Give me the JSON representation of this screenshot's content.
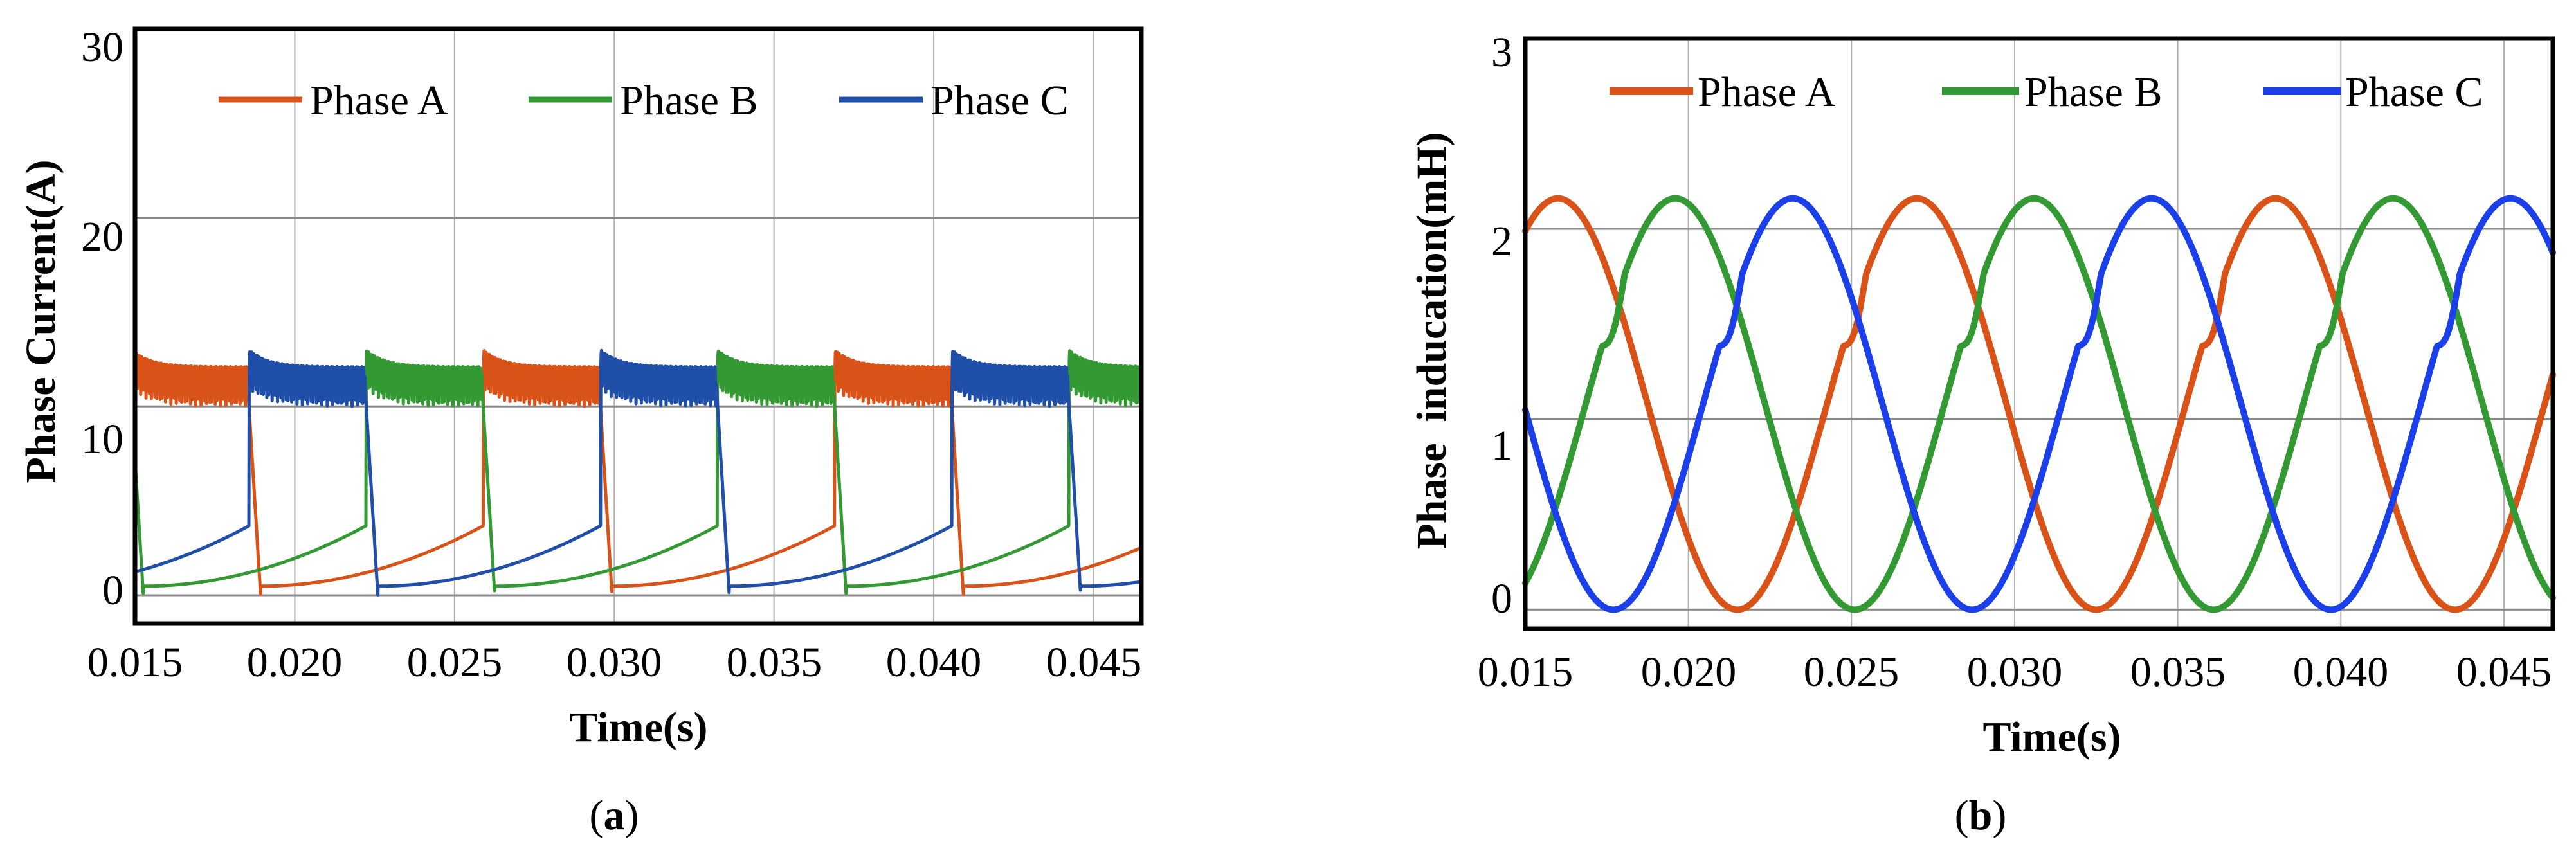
{
  "chart_data": [
    {
      "panel_label": "a",
      "type": "line",
      "title": "",
      "xlabel": "Time(s)",
      "ylabel": "Phase Current(A)",
      "xlim": [
        0.015,
        0.0465
      ],
      "ylim": [
        -1.5,
        30
      ],
      "xticks": [
        0.015,
        0.02,
        0.025,
        0.03,
        0.035,
        0.04,
        0.045
      ],
      "xtick_labels": [
        "0.015",
        "0.020",
        "0.025",
        "0.030",
        "0.035",
        "0.040",
        "0.045"
      ],
      "yticks": [
        0,
        10,
        20,
        30
      ],
      "ytick_labels": [
        "0",
        "10",
        "20",
        "30"
      ],
      "grid": true,
      "legend_position": "top",
      "series": [
        {
          "name": "Phase A",
          "color": "#D95319",
          "conduction_start": 0.0149,
          "phase_offset": 0.0
        },
        {
          "name": "Phase B",
          "color": "#339933",
          "conduction_start": 0.0149,
          "phase_offset": -0.00367
        },
        {
          "name": "Phase C",
          "color": "#1F4FA8",
          "conduction_start": 0.0149,
          "phase_offset": -0.00733
        }
      ],
      "waveform": {
        "period": 0.011,
        "conduction_duration": 0.00363,
        "on_level": 10,
        "on_peak": 13,
        "ripple": 2.1,
        "fall_time": 0.0004,
        "decay_floor": 1.6,
        "decay_ceiling": 3.2
      }
    },
    {
      "panel_label": "b",
      "type": "line",
      "title": "",
      "xlabel": "Time(s)",
      "ylabel": "Phase  inducation(mH)",
      "xlim": [
        0.015,
        0.0465
      ],
      "ylim": [
        -0.1,
        3
      ],
      "xticks": [
        0.015,
        0.02,
        0.025,
        0.03,
        0.035,
        0.04,
        0.045
      ],
      "xtick_labels": [
        "0.015",
        "0.020",
        "0.025",
        "0.030",
        "0.035",
        "0.040",
        "0.045"
      ],
      "yticks": [
        0,
        1,
        2,
        3
      ],
      "ytick_labels": [
        "0",
        "1",
        "2",
        "3"
      ],
      "grid": true,
      "legend_position": "top",
      "series": [
        {
          "name": "Phase A",
          "color": "#D95319",
          "peak_time": 0.016,
          "notch_time": 0.0251
        },
        {
          "name": "Phase B",
          "color": "#339933",
          "peak_time": 0.0196,
          "notch_time": 0.0287
        },
        {
          "name": "Phase C",
          "color": "#1B3FE8",
          "peak_time": 0.0232,
          "notch_time": 0.0323
        }
      ],
      "waveform": {
        "period": 0.011,
        "mean": 1.08,
        "amplitude": 1.08,
        "max": 2.16,
        "min": 0.0
      }
    }
  ],
  "captions": {
    "a": "a",
    "b": "b"
  }
}
